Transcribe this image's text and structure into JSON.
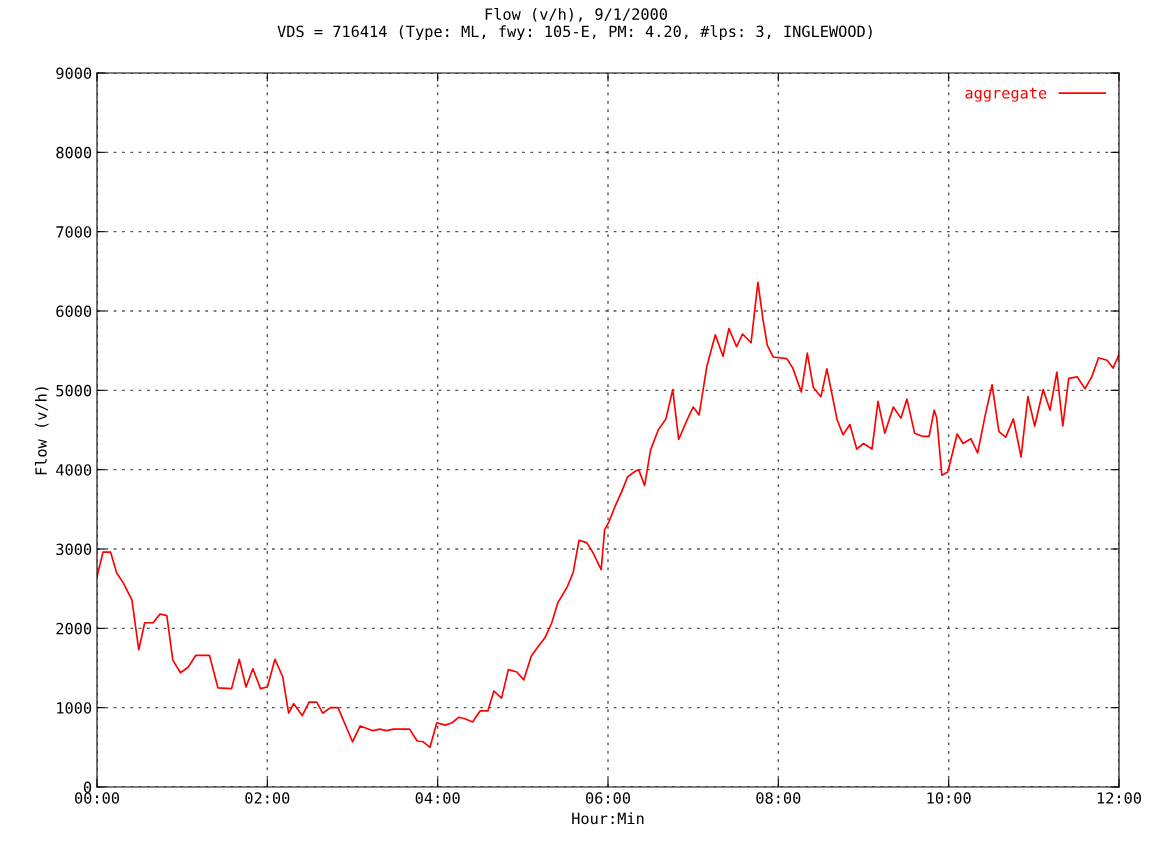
{
  "chart_data": {
    "type": "line",
    "title": "Flow (v/h), 9/1/2000",
    "subtitle": "VDS = 716414 (Type: ML, fwy: 105-E, PM: 4.20, #lps: 3, INGLEWOOD)",
    "xlabel": "Hour:Min",
    "ylabel": "Flow (v/h)",
    "xlim": [
      0,
      12
    ],
    "xticks": [
      {
        "value": 0,
        "label": "00:00"
      },
      {
        "value": 2,
        "label": "02:00"
      },
      {
        "value": 4,
        "label": "04:00"
      },
      {
        "value": 6,
        "label": "06:00"
      },
      {
        "value": 8,
        "label": "08:00"
      },
      {
        "value": 10,
        "label": "10:00"
      },
      {
        "value": 12,
        "label": "12:00"
      }
    ],
    "ylim": [
      0,
      9000
    ],
    "yticks": [
      0,
      1000,
      2000,
      3000,
      4000,
      5000,
      6000,
      7000,
      8000,
      9000
    ],
    "grid": true,
    "legend": "top right",
    "line_style": "solid",
    "marker": "none",
    "series": [
      {
        "name": "aggregate",
        "color": "#ff0000",
        "x": [
          0,
          0.07,
          0.16,
          0.23,
          0.31,
          0.41,
          0.49,
          0.56,
          0.66,
          0.74,
          0.82,
          0.89,
          0.98,
          1.07,
          1.16,
          1.32,
          1.42,
          1.58,
          1.67,
          1.75,
          1.83,
          1.92,
          2.0,
          2.09,
          2.18,
          2.25,
          2.31,
          2.41,
          2.49,
          2.58,
          2.65,
          2.74,
          2.83,
          3.0,
          3.09,
          3.24,
          3.32,
          3.4,
          3.48,
          3.67,
          3.76,
          3.83,
          3.91,
          3.99,
          4.09,
          4.17,
          4.25,
          4.32,
          4.41,
          4.5,
          4.59,
          4.66,
          4.75,
          4.83,
          4.93,
          5.01,
          5.1,
          5.18,
          5.26,
          5.34,
          5.41,
          5.52,
          5.59,
          5.66,
          5.75,
          5.82,
          5.92,
          5.96,
          6.01,
          6.08,
          6.16,
          6.23,
          6.32,
          6.36,
          6.43,
          6.5,
          6.59,
          6.68,
          6.76,
          6.83,
          6.93,
          7.0,
          7.07,
          7.16,
          7.26,
          7.35,
          7.42,
          7.51,
          7.58,
          7.68,
          7.76,
          7.82,
          7.87,
          7.94,
          8.1,
          8.17,
          8.27,
          8.34,
          8.41,
          8.5,
          8.57,
          8.69,
          8.76,
          8.84,
          8.92,
          9.0,
          9.1,
          9.17,
          9.25,
          9.35,
          9.44,
          9.51,
          9.6,
          9.69,
          9.77,
          9.83,
          9.86,
          9.92,
          9.99,
          10.1,
          10.17,
          10.26,
          10.34,
          10.43,
          10.51,
          10.59,
          10.67,
          10.76,
          10.85,
          10.93,
          11.01,
          11.11,
          11.19,
          11.27,
          11.34,
          11.41,
          11.51,
          11.6,
          11.68,
          11.76,
          11.86,
          11.93,
          12.0
        ],
        "values": [
          2650,
          2960,
          2960,
          2700,
          2570,
          2360,
          1730,
          2070,
          2070,
          2180,
          2160,
          1600,
          1440,
          1510,
          1660,
          1660,
          1250,
          1240,
          1610,
          1260,
          1490,
          1240,
          1260,
          1610,
          1390,
          930,
          1050,
          900,
          1070,
          1070,
          930,
          1000,
          1000,
          570,
          770,
          710,
          730,
          710,
          730,
          730,
          580,
          570,
          500,
          810,
          780,
          810,
          880,
          860,
          820,
          960,
          960,
          1210,
          1120,
          1480,
          1450,
          1350,
          1650,
          1770,
          1880,
          2070,
          2320,
          2520,
          2700,
          3110,
          3080,
          2960,
          2740,
          3240,
          3340,
          3530,
          3720,
          3910,
          3980,
          4000,
          3800,
          4250,
          4500,
          4640,
          5010,
          4380,
          4630,
          4790,
          4690,
          5300,
          5700,
          5430,
          5780,
          5550,
          5710,
          5600,
          6360,
          5890,
          5570,
          5420,
          5400,
          5280,
          4980,
          5470,
          5040,
          4920,
          5270,
          4630,
          4440,
          4570,
          4260,
          4330,
          4260,
          4860,
          4460,
          4790,
          4650,
          4890,
          4460,
          4420,
          4420,
          4750,
          4650,
          3930,
          3970,
          4450,
          4330,
          4390,
          4210,
          4690,
          5070,
          4480,
          4410,
          4640,
          4160,
          4920,
          4550,
          5010,
          4750,
          5230,
          4550,
          5150,
          5170,
          5020,
          5170,
          5410,
          5380,
          5280,
          5450
        ]
      }
    ]
  }
}
